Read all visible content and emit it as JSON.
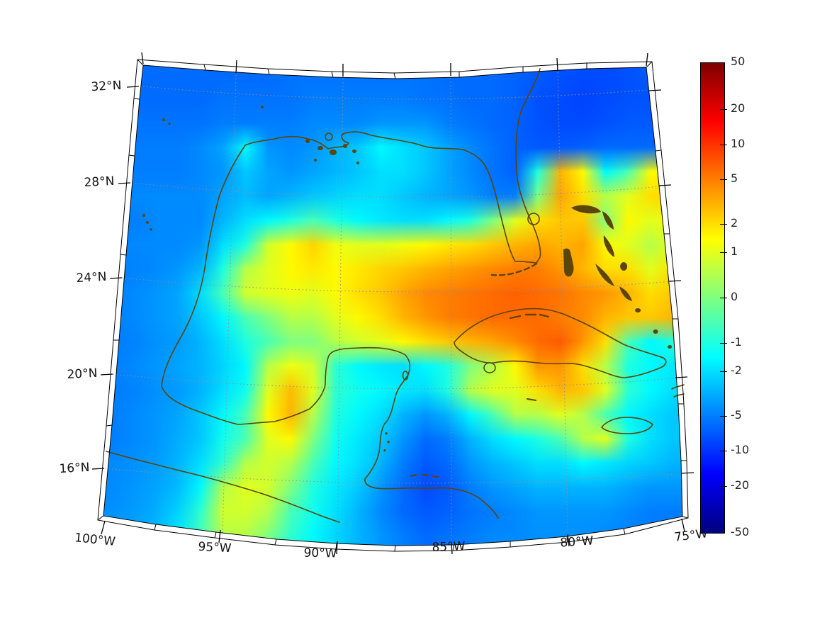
{
  "figure": {
    "background": "#ffffff"
  },
  "colors": {
    "coastline": "#5c4508",
    "gridline": "#999999",
    "frame": "#000000",
    "label": "#141414"
  },
  "chart_data": {
    "type": "heatmap",
    "title": "",
    "x_axis": {
      "label": "",
      "ticks": [
        "100°W",
        "95°W",
        "90°W",
        "85°W",
        "80°W",
        "75°W"
      ]
    },
    "y_axis": {
      "label": "",
      "ticks": [
        "32°N",
        "28°N",
        "24°N",
        "20°N",
        "16°N"
      ]
    },
    "legend_position": "right-colorbar",
    "grid_on": true,
    "colorbar": {
      "tick_labels": [
        "50",
        "20",
        "10",
        "5",
        "2",
        "1",
        "0",
        "-1",
        "-2",
        "-5",
        "-10",
        "-20",
        "-50"
      ],
      "tick_values": [
        50,
        20,
        10,
        5,
        2,
        1,
        0,
        -1,
        -2,
        -5,
        -10,
        -20,
        -50
      ],
      "vmin": -50,
      "vmax": 50,
      "scale": "asinh",
      "colormap": "jet",
      "colormap_stops": [
        {
          "p": 0.0,
          "c": "#00007f"
        },
        {
          "p": 0.125,
          "c": "#0000ff"
        },
        {
          "p": 0.375,
          "c": "#00ffff"
        },
        {
          "p": 0.625,
          "c": "#ffff00"
        },
        {
          "p": 0.875,
          "c": "#ff0000"
        },
        {
          "p": 1.0,
          "c": "#7f0000"
        }
      ]
    },
    "grid": {
      "cols": 26,
      "rows": 20,
      "values": [
        [
          -6,
          -6,
          -6,
          -6,
          -6,
          -6,
          -6,
          -6,
          -5.5,
          -5.5,
          -5.5,
          -5.5,
          -5.5,
          -5.5,
          -5.5,
          -6,
          -6,
          -6,
          -6.5,
          -7,
          -7.5,
          -8,
          -8,
          -7.5,
          -7,
          -7
        ],
        [
          -6,
          -6,
          -6,
          -6,
          -6,
          -5.5,
          -5.5,
          -5.5,
          -5.5,
          -5,
          -5,
          -5,
          -5,
          -5,
          -5.5,
          -5.5,
          -6,
          -6,
          -6.5,
          -7.5,
          -8,
          -8.5,
          -8,
          -7.5,
          -7.5,
          -7.5
        ],
        [
          -5.5,
          -5.5,
          -5.5,
          -5.5,
          -5.5,
          -5,
          -5,
          -5,
          -5,
          -4.5,
          -4.5,
          -4.5,
          -4,
          -4,
          -4,
          -5,
          -5.5,
          -6,
          -6.5,
          -7.5,
          -8,
          -8,
          -7.5,
          -7,
          -7,
          -7
        ],
        [
          -5,
          -5,
          -5,
          -5,
          -4.5,
          -3.5,
          -1.5,
          -4,
          -4.5,
          -4,
          -3,
          -2.5,
          -1.5,
          -2,
          -2.5,
          -3.5,
          -4.5,
          -5.5,
          -6.5,
          -7,
          -7,
          -6.5,
          -6,
          -6,
          -6,
          -6
        ],
        [
          -5,
          -5,
          -5,
          -5,
          -4.5,
          -4,
          -2.5,
          -3.5,
          -4,
          -3.5,
          -3,
          -2.5,
          -2,
          -2,
          -2.5,
          -3.5,
          -4.5,
          -5.5,
          -6.5,
          -1,
          3,
          1.5,
          -1.5,
          -0.5,
          1.5,
          1
        ],
        [
          -5,
          -4.5,
          -4.5,
          -4.5,
          -4.5,
          -3.5,
          -2.8,
          -3.5,
          -3,
          -2.5,
          -2.2,
          -2,
          -2,
          -2.5,
          -3,
          -3.5,
          -4,
          -5,
          -5,
          0,
          3.5,
          2,
          0.5,
          1,
          2,
          2.2
        ],
        [
          -5,
          -5,
          -4.5,
          -4.5,
          -4.5,
          -3,
          -2,
          -1.5,
          -1,
          -0.5,
          -1,
          -1.5,
          -1.8,
          -2,
          -2,
          -1.5,
          -1,
          0,
          1,
          2,
          2.5,
          2.5,
          0,
          1.5,
          1,
          1.5
        ],
        [
          -5,
          -4.5,
          -4.5,
          -4.5,
          -4,
          -2,
          -1,
          0.8,
          1.5,
          2.2,
          1.2,
          1,
          1,
          1.2,
          1.5,
          1.8,
          2,
          2.5,
          3,
          3.5,
          3,
          3.5,
          1.5,
          1,
          0.5,
          1
        ],
        [
          -5,
          -4.8,
          -4.5,
          -4,
          -3,
          -1,
          0.5,
          1,
          1.5,
          1.8,
          1.5,
          1.8,
          2.2,
          2.5,
          3,
          3.5,
          4,
          4.5,
          5,
          5,
          4,
          3,
          2,
          2,
          1,
          2
        ],
        [
          -5,
          -4.5,
          -4,
          -3.5,
          -2,
          -0.5,
          0.8,
          1,
          1.2,
          1,
          1.5,
          2,
          2.5,
          3.5,
          4.5,
          5,
          5.5,
          6,
          6.5,
          6,
          5.5,
          4.5,
          4,
          3,
          2,
          2.5
        ],
        [
          -5,
          -4.5,
          -4,
          -3.5,
          -2.5,
          -1.5,
          -0.5,
          0,
          0.5,
          0.5,
          1,
          1.5,
          2,
          3,
          4,
          5,
          5.5,
          6,
          6,
          6,
          5,
          4.5,
          3,
          2.5,
          2.5,
          3
        ],
        [
          -5,
          -4.8,
          -4.2,
          -3.8,
          -3,
          -2,
          -1,
          -0.5,
          0,
          0,
          0.5,
          0.8,
          1,
          1.5,
          2,
          2.5,
          3,
          3.5,
          4.5,
          6,
          7,
          4,
          2,
          -0.5,
          -1.5,
          -1
        ],
        [
          -5,
          -4.5,
          -4,
          -3.5,
          -3,
          -2.2,
          -1.5,
          0.5,
          1.2,
          0.8,
          -0.8,
          -1.5,
          -1.8,
          -2,
          -1.5,
          -1,
          0,
          0.5,
          1.5,
          4,
          4,
          2,
          0.5,
          -1,
          -1.5,
          -1.8
        ],
        [
          -5,
          -4.8,
          -4.2,
          -3.8,
          -3,
          -2,
          -1.2,
          1,
          2.8,
          1,
          -0.8,
          -1.2,
          -1.5,
          -1.8,
          -2,
          -1,
          0.5,
          1,
          1,
          2,
          3,
          2.5,
          1,
          -0.8,
          -1.5,
          -2
        ],
        [
          -5,
          -4.5,
          -4,
          -3.5,
          -2.5,
          -1.5,
          -0.5,
          1.5,
          3,
          0.5,
          -1,
          -1.5,
          -2,
          -3,
          -4,
          -3,
          -1.5,
          -0.5,
          0.5,
          0.5,
          1,
          0.5,
          -0.5,
          -1.5,
          -2,
          -2.5
        ],
        [
          -5,
          -4.5,
          -4,
          -3.2,
          -2.5,
          -1.2,
          -0.5,
          1,
          1.5,
          0,
          -1.2,
          -1.8,
          -2.5,
          -4,
          -6,
          -5,
          -3,
          -2,
          -1.5,
          -1,
          -0.5,
          0.5,
          1,
          -1,
          -2,
          -2.5
        ],
        [
          -4.5,
          -4.2,
          -3.8,
          -3,
          -2,
          -0.8,
          0.5,
          0.8,
          0.5,
          -0.5,
          -1.5,
          -2,
          -3,
          -5,
          -7,
          -6,
          -4,
          -3,
          -2.5,
          -2,
          -2,
          -1.5,
          -1.8,
          -2.2,
          -2.5,
          -3
        ],
        [
          -4.5,
          -4,
          -3.5,
          -2.8,
          -1.5,
          0.5,
          1,
          0.8,
          0,
          -1,
          -1.8,
          -2.5,
          -4,
          -6,
          -8,
          -7,
          -5,
          -4,
          -3.5,
          -3,
          -3,
          -3,
          -3,
          -3.5,
          -4,
          -4
        ],
        [
          -4.2,
          -3.8,
          -3.2,
          -2.2,
          -0.8,
          0.8,
          0.8,
          0.5,
          -0.5,
          -1.2,
          -2,
          -3,
          -4.5,
          -6,
          -7,
          -6.5,
          -5.5,
          -5,
          -4.5,
          -4,
          -4,
          -4,
          -4,
          -4.5,
          -5,
          -5
        ],
        [
          -4,
          -3.5,
          -2.8,
          -1.8,
          -0.5,
          0.5,
          0.5,
          0,
          -0.8,
          -1.5,
          -2.2,
          -3,
          -4,
          -5,
          -6,
          -5.5,
          -5,
          -4.5,
          -4.5,
          -4.2,
          -4.2,
          -4.2,
          -4.5,
          -4.8,
          -5,
          -5
        ]
      ]
    }
  }
}
